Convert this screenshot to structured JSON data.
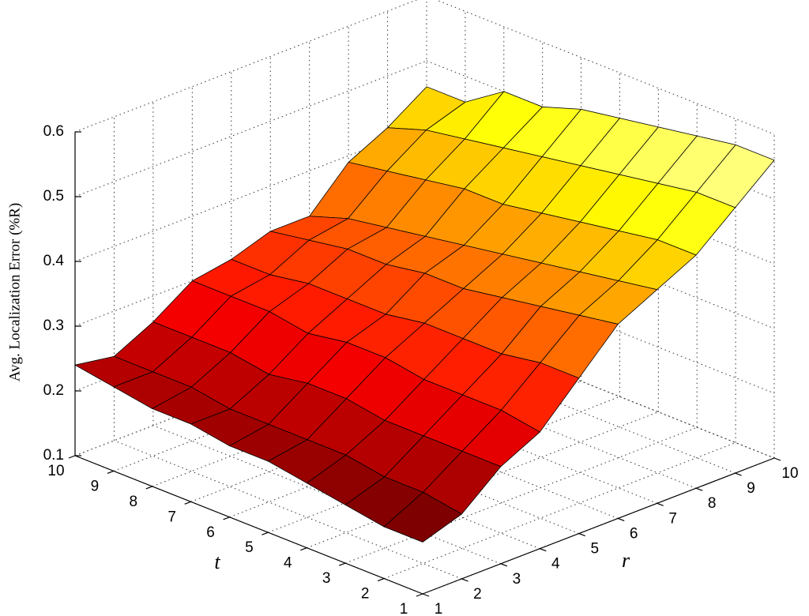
{
  "chart_data": {
    "type": "surface",
    "zlabel": "Avg. Localization Error (%R)",
    "xlabel": "r",
    "ylabel": "t",
    "x": [
      1,
      2,
      3,
      4,
      5,
      6,
      7,
      8,
      9,
      10
    ],
    "y": [
      1,
      2,
      3,
      4,
      5,
      6,
      7,
      8,
      9,
      10
    ],
    "z": [
      [
        0.18,
        0.2,
        0.25,
        0.28,
        0.34,
        0.4,
        0.43,
        0.46,
        0.51,
        0.56
      ],
      [
        0.18,
        0.21,
        0.25,
        0.29,
        0.34,
        0.39,
        0.42,
        0.46,
        0.51,
        0.56
      ],
      [
        0.19,
        0.21,
        0.25,
        0.29,
        0.33,
        0.38,
        0.41,
        0.45,
        0.5,
        0.55
      ],
      [
        0.2,
        0.22,
        0.25,
        0.29,
        0.33,
        0.37,
        0.4,
        0.44,
        0.49,
        0.54
      ],
      [
        0.21,
        0.22,
        0.26,
        0.3,
        0.33,
        0.36,
        0.39,
        0.43,
        0.48,
        0.53
      ],
      [
        0.21,
        0.22,
        0.26,
        0.3,
        0.32,
        0.36,
        0.38,
        0.42,
        0.47,
        0.52
      ],
      [
        0.22,
        0.22,
        0.25,
        0.29,
        0.32,
        0.35,
        0.37,
        0.42,
        0.46,
        0.5
      ],
      [
        0.22,
        0.23,
        0.26,
        0.3,
        0.32,
        0.35,
        0.36,
        0.41,
        0.45,
        0.5
      ],
      [
        0.23,
        0.23,
        0.26,
        0.3,
        0.31,
        0.34,
        0.35,
        0.4,
        0.44,
        0.46
      ],
      [
        0.24,
        0.23,
        0.26,
        0.3,
        0.31,
        0.33,
        0.33,
        0.39,
        0.42,
        0.46
      ]
    ],
    "xlim": [
      1,
      10
    ],
    "xticks": [
      1,
      2,
      3,
      4,
      5,
      6,
      7,
      8,
      9,
      10
    ],
    "ylim": [
      1,
      10
    ],
    "yticks": [
      1,
      2,
      3,
      4,
      5,
      6,
      7,
      8,
      9,
      10
    ],
    "zlim": [
      0.1,
      0.6
    ],
    "zticks": [
      0.1,
      0.2,
      0.3,
      0.4,
      0.5,
      0.6
    ],
    "colormap": "hot",
    "grid": true
  }
}
